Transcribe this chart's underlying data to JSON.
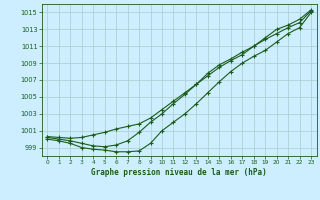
{
  "title": "Graphe pression niveau de la mer (hPa)",
  "bg_color": "#cceeff",
  "line_color": "#1a5c1a",
  "grid_color": "#aacccc",
  "xlim": [
    -0.5,
    23.5
  ],
  "ylim": [
    998.0,
    1016.0
  ],
  "yticks": [
    999,
    1001,
    1003,
    1005,
    1007,
    1009,
    1011,
    1013,
    1015
  ],
  "xticks": [
    0,
    1,
    2,
    3,
    4,
    5,
    6,
    7,
    8,
    9,
    10,
    11,
    12,
    13,
    14,
    15,
    16,
    17,
    18,
    19,
    20,
    21,
    22,
    23
  ],
  "line_min": [
    1000.0,
    999.8,
    999.5,
    999.0,
    998.8,
    998.7,
    998.5,
    998.5,
    998.6,
    999.5,
    1001.0,
    1002.0,
    1003.0,
    1004.2,
    1005.5,
    1006.8,
    1008.0,
    1009.0,
    1009.8,
    1010.5,
    1011.5,
    1012.5,
    1013.2,
    1015.0
  ],
  "line_mid": [
    1000.2,
    1000.0,
    999.8,
    999.5,
    999.2,
    999.1,
    999.3,
    999.8,
    1000.8,
    1002.0,
    1003.0,
    1004.2,
    1005.3,
    1006.5,
    1007.8,
    1008.8,
    1009.5,
    1010.3,
    1011.0,
    1011.8,
    1012.5,
    1013.2,
    1013.8,
    1015.2
  ],
  "line_max": [
    1000.3,
    1000.2,
    1000.1,
    1000.2,
    1000.5,
    1000.8,
    1001.2,
    1001.5,
    1001.8,
    1002.5,
    1003.5,
    1004.5,
    1005.5,
    1006.5,
    1007.5,
    1008.5,
    1009.3,
    1010.0,
    1011.0,
    1012.0,
    1013.0,
    1013.5,
    1014.2,
    1015.3
  ]
}
